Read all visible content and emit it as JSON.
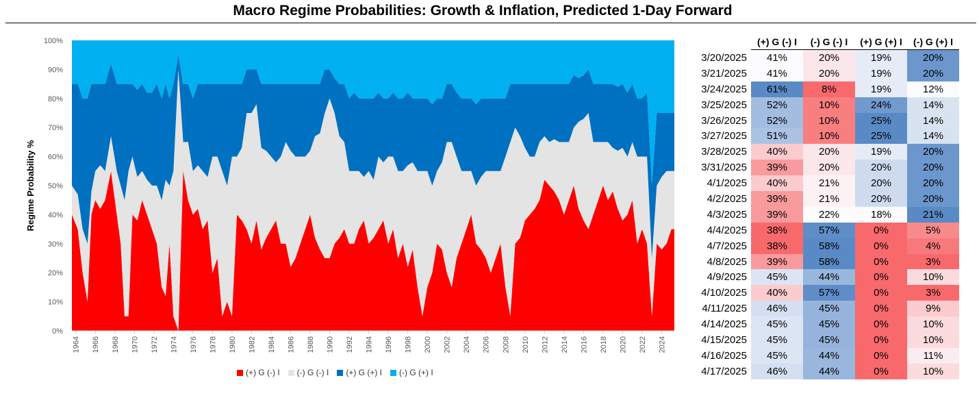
{
  "title": "Macro Regime Probabilities: Growth & Inflation, Predicted 1-Day Forward",
  "chart_data": {
    "type": "area",
    "stacked": true,
    "ylabel": "Regime Probability %",
    "ylim": [
      0,
      100
    ],
    "y_ticks": [
      "0%",
      "10%",
      "20%",
      "30%",
      "40%",
      "50%",
      "60%",
      "70%",
      "80%",
      "90%",
      "100%"
    ],
    "x_ticks": [
      "1964",
      "1966",
      "1968",
      "1970",
      "1972",
      "1974",
      "1976",
      "1978",
      "1980",
      "1982",
      "1984",
      "1986",
      "1988",
      "1990",
      "1992",
      "1994",
      "1996",
      "1998",
      "2000",
      "2002",
      "2004",
      "2006",
      "2008",
      "2010",
      "2012",
      "2014",
      "2016",
      "2018",
      "2020",
      "2022",
      "2024"
    ],
    "xlim": [
      1963.6,
      2025.3
    ],
    "legend_position": "bottom",
    "series": [
      {
        "name": "(+) G (-) I",
        "color": "#ff0000"
      },
      {
        "name": "(-) G (-) I",
        "color": "#e4e4e4"
      },
      {
        "name": "(+) G (+) I",
        "color": "#0070c0"
      },
      {
        "name": "(-) G (+) I",
        "color": "#00b0f0"
      }
    ],
    "x": [
      1963.6,
      1964.2,
      1964.7,
      1965.2,
      1965.6,
      1966.0,
      1966.5,
      1967.0,
      1967.6,
      1968.2,
      1968.6,
      1969.0,
      1969.4,
      1969.8,
      1970.3,
      1970.8,
      1971.3,
      1971.8,
      1972.3,
      1972.8,
      1973.2,
      1973.6,
      1974.0,
      1974.5,
      1975.0,
      1975.5,
      1976.0,
      1976.5,
      1977.0,
      1977.5,
      1978.0,
      1978.5,
      1979.0,
      1979.5,
      1980.0,
      1980.5,
      1981.0,
      1981.5,
      1982.0,
      1982.5,
      1983.0,
      1983.5,
      1984.0,
      1984.5,
      1985.0,
      1985.5,
      1986.0,
      1986.5,
      1987.0,
      1987.5,
      1988.0,
      1988.5,
      1989.0,
      1989.5,
      1990.0,
      1990.5,
      1991.0,
      1991.5,
      1992.0,
      1992.5,
      1993.0,
      1993.5,
      1994.0,
      1994.5,
      1995.0,
      1995.5,
      1996.0,
      1996.5,
      1997.0,
      1997.5,
      1998.0,
      1998.5,
      1999.0,
      1999.5,
      2000.0,
      2000.5,
      2001.0,
      2001.5,
      2002.0,
      2002.5,
      2003.0,
      2003.5,
      2004.0,
      2004.5,
      2005.0,
      2005.5,
      2006.0,
      2006.5,
      2007.0,
      2007.5,
      2008.0,
      2008.5,
      2009.0,
      2009.5,
      2010.0,
      2010.5,
      2011.0,
      2011.5,
      2012.0,
      2012.5,
      2013.0,
      2013.5,
      2014.0,
      2014.5,
      2015.0,
      2015.5,
      2016.0,
      2016.5,
      2017.0,
      2017.5,
      2018.0,
      2018.5,
      2019.0,
      2019.5,
      2020.0,
      2020.5,
      2021.0,
      2021.5,
      2022.0,
      2022.5,
      2023.0,
      2023.5,
      2024.0,
      2024.5,
      2025.0,
      2025.3
    ],
    "values": {
      "(+) G (-) I": [
        40,
        35,
        20,
        10,
        40,
        45,
        42,
        45,
        55,
        40,
        30,
        5,
        5,
        40,
        38,
        45,
        40,
        35,
        30,
        15,
        12,
        30,
        5,
        0,
        55,
        45,
        40,
        42,
        35,
        38,
        20,
        25,
        5,
        10,
        5,
        40,
        38,
        35,
        30,
        38,
        28,
        32,
        35,
        38,
        30,
        30,
        22,
        25,
        30,
        35,
        40,
        32,
        28,
        25,
        25,
        30,
        32,
        35,
        30,
        30,
        35,
        38,
        30,
        32,
        35,
        38,
        30,
        35,
        25,
        30,
        22,
        28,
        15,
        5,
        15,
        20,
        30,
        28,
        20,
        15,
        25,
        30,
        35,
        40,
        30,
        28,
        25,
        20,
        25,
        30,
        15,
        5,
        30,
        32,
        38,
        40,
        42,
        45,
        52,
        50,
        48,
        45,
        40,
        45,
        50,
        42,
        38,
        35,
        40,
        45,
        50,
        45,
        48,
        42,
        38,
        40,
        45,
        30,
        35,
        30,
        5,
        30,
        28,
        30,
        35,
        35
      ],
      "(-) G (-) I": [
        10,
        12,
        15,
        20,
        8,
        10,
        15,
        10,
        12,
        15,
        20,
        40,
        50,
        20,
        15,
        10,
        12,
        15,
        20,
        30,
        40,
        20,
        50,
        90,
        10,
        20,
        15,
        15,
        20,
        15,
        40,
        35,
        50,
        40,
        55,
        20,
        25,
        40,
        45,
        40,
        35,
        30,
        25,
        20,
        30,
        35,
        40,
        35,
        30,
        25,
        22,
        35,
        40,
        50,
        55,
        45,
        35,
        30,
        25,
        25,
        20,
        15,
        25,
        20,
        25,
        20,
        30,
        25,
        30,
        25,
        35,
        30,
        40,
        50,
        40,
        30,
        25,
        30,
        45,
        50,
        35,
        25,
        20,
        15,
        20,
        25,
        30,
        35,
        30,
        25,
        45,
        60,
        40,
        35,
        25,
        20,
        18,
        20,
        15,
        15,
        18,
        20,
        25,
        20,
        20,
        30,
        35,
        40,
        25,
        20,
        15,
        20,
        15,
        20,
        25,
        20,
        20,
        30,
        25,
        30,
        20,
        20,
        25,
        25,
        20,
        20
      ],
      "(+) G (+) I": [
        35,
        38,
        45,
        50,
        37,
        30,
        28,
        30,
        25,
        30,
        35,
        40,
        30,
        25,
        30,
        30,
        30,
        32,
        35,
        35,
        33,
        30,
        30,
        5,
        20,
        20,
        25,
        28,
        30,
        32,
        25,
        25,
        30,
        35,
        25,
        25,
        22,
        15,
        15,
        12,
        22,
        23,
        25,
        27,
        25,
        20,
        23,
        25,
        25,
        25,
        23,
        18,
        17,
        15,
        10,
        12,
        18,
        20,
        25,
        27,
        25,
        27,
        25,
        28,
        22,
        22,
        20,
        22,
        25,
        25,
        25,
        22,
        25,
        25,
        25,
        28,
        25,
        22,
        20,
        20,
        22,
        25,
        25,
        25,
        28,
        27,
        25,
        25,
        25,
        25,
        20,
        20,
        15,
        18,
        22,
        25,
        25,
        20,
        18,
        20,
        19,
        20,
        20,
        20,
        18,
        15,
        15,
        15,
        20,
        20,
        20,
        20,
        22,
        22,
        22,
        22,
        20,
        20,
        20,
        22,
        25,
        25,
        22,
        20,
        20,
        20
      ],
      "(-) G (+) I": [
        15,
        15,
        20,
        20,
        15,
        15,
        15,
        15,
        8,
        15,
        15,
        15,
        15,
        15,
        17,
        15,
        18,
        18,
        15,
        20,
        15,
        20,
        15,
        5,
        15,
        15,
        20,
        15,
        15,
        15,
        15,
        15,
        15,
        15,
        15,
        15,
        15,
        10,
        10,
        10,
        15,
        15,
        15,
        15,
        15,
        15,
        15,
        15,
        15,
        15,
        15,
        15,
        15,
        10,
        10,
        13,
        15,
        15,
        20,
        18,
        20,
        20,
        20,
        20,
        18,
        20,
        20,
        18,
        20,
        20,
        18,
        20,
        20,
        20,
        20,
        22,
        20,
        20,
        15,
        15,
        18,
        20,
        20,
        20,
        22,
        20,
        20,
        20,
        20,
        20,
        20,
        15,
        15,
        15,
        15,
        15,
        15,
        15,
        15,
        15,
        15,
        15,
        15,
        15,
        12,
        13,
        12,
        10,
        15,
        15,
        15,
        15,
        15,
        16,
        15,
        18,
        15,
        20,
        20,
        18,
        50,
        25,
        25,
        25,
        25,
        25
      ]
    }
  },
  "legend": {
    "items": [
      "(+) G (-) I",
      "(-) G (-) I",
      "(+) G (+) I",
      "(-) G (+) I"
    ]
  },
  "table": {
    "columns": [
      "(+) G (-) I",
      "(-) G (-) I",
      "(+) G (+) I",
      "(-) G (+) I"
    ],
    "rows": [
      {
        "date": "3/20/2025",
        "values": [
          "41%",
          "20%",
          "19%",
          "20%"
        ]
      },
      {
        "date": "3/21/2025",
        "values": [
          "41%",
          "20%",
          "19%",
          "20%"
        ]
      },
      {
        "date": "3/24/2025",
        "values": [
          "61%",
          "8%",
          "19%",
          "12%"
        ]
      },
      {
        "date": "3/25/2025",
        "values": [
          "52%",
          "10%",
          "24%",
          "14%"
        ]
      },
      {
        "date": "3/26/2025",
        "values": [
          "52%",
          "10%",
          "25%",
          "14%"
        ]
      },
      {
        "date": "3/27/2025",
        "values": [
          "51%",
          "10%",
          "25%",
          "14%"
        ]
      },
      {
        "date": "3/28/2025",
        "values": [
          "40%",
          "20%",
          "19%",
          "20%"
        ]
      },
      {
        "date": "3/31/2025",
        "values": [
          "39%",
          "20%",
          "20%",
          "20%"
        ]
      },
      {
        "date": "4/1/2025",
        "values": [
          "40%",
          "21%",
          "20%",
          "20%"
        ]
      },
      {
        "date": "4/2/2025",
        "values": [
          "39%",
          "21%",
          "20%",
          "20%"
        ]
      },
      {
        "date": "4/3/2025",
        "values": [
          "39%",
          "22%",
          "18%",
          "21%"
        ]
      },
      {
        "date": "4/4/2025",
        "values": [
          "38%",
          "57%",
          "0%",
          "5%"
        ]
      },
      {
        "date": "4/7/2025",
        "values": [
          "38%",
          "58%",
          "0%",
          "4%"
        ]
      },
      {
        "date": "4/8/2025",
        "values": [
          "39%",
          "58%",
          "0%",
          "3%"
        ]
      },
      {
        "date": "4/9/2025",
        "values": [
          "45%",
          "44%",
          "0%",
          "10%"
        ]
      },
      {
        "date": "4/10/2025",
        "values": [
          "40%",
          "57%",
          "0%",
          "3%"
        ]
      },
      {
        "date": "4/11/2025",
        "values": [
          "46%",
          "45%",
          "0%",
          "9%"
        ]
      },
      {
        "date": "4/14/2025",
        "values": [
          "45%",
          "45%",
          "0%",
          "10%"
        ]
      },
      {
        "date": "4/15/2025",
        "values": [
          "45%",
          "45%",
          "0%",
          "10%"
        ]
      },
      {
        "date": "4/16/2025",
        "values": [
          "45%",
          "44%",
          "0%",
          "11%"
        ]
      },
      {
        "date": "4/17/2025",
        "values": [
          "46%",
          "44%",
          "0%",
          "10%"
        ]
      }
    ]
  }
}
